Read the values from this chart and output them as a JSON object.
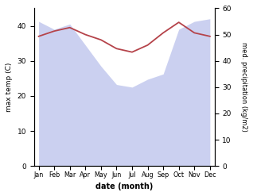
{
  "months": [
    "Jan",
    "Feb",
    "Mar",
    "Apr",
    "May",
    "Jun",
    "Jul",
    "Aug",
    "Sep",
    "Oct",
    "Nov",
    "Dec"
  ],
  "max_temp": [
    37.0,
    38.5,
    39.5,
    37.5,
    36.0,
    33.5,
    32.5,
    34.5,
    38.0,
    41.0,
    38.0,
    37.0
  ],
  "med_precip": [
    55.0,
    52.0,
    54.0,
    46.0,
    38.0,
    31.0,
    30.0,
    33.0,
    35.0,
    52.0,
    55.0,
    56.0
  ],
  "temp_color": "#b5434a",
  "precip_color": "#b0b8e8",
  "precip_alpha": 0.65,
  "ylabel_left": "max temp (C)",
  "ylabel_right": "med. precipitation (kg/m2)",
  "xlabel": "date (month)",
  "ylim_left": [
    0,
    45
  ],
  "ylim_right": [
    0,
    60
  ],
  "yticks_left": [
    0,
    10,
    20,
    30,
    40
  ],
  "yticks_right": [
    0,
    10,
    20,
    30,
    40,
    50,
    60
  ],
  "bg_color": "#ffffff"
}
